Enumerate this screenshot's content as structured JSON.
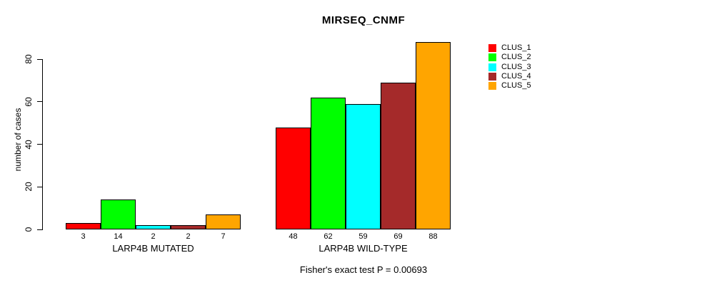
{
  "chart_data": {
    "type": "bar",
    "title": "MIRSEQ_CNMF",
    "ylabel": "number of cases",
    "xlabel": "",
    "caption": "Fisher's exact test P = 0.00693",
    "yticks": [
      0,
      20,
      40,
      60,
      80
    ],
    "ylim": [
      0,
      88
    ],
    "grid": false,
    "legend_position": "top-right",
    "series": [
      {
        "name": "CLUS_1",
        "color": "#FF0000",
        "values": [
          3,
          48
        ]
      },
      {
        "name": "CLUS_2",
        "color": "#00FF00",
        "values": [
          14,
          62
        ]
      },
      {
        "name": "CLUS_3",
        "color": "#00FFFF",
        "values": [
          2,
          59
        ]
      },
      {
        "name": "CLUS_4",
        "color": "#A52A2A",
        "values": [
          2,
          69
        ]
      },
      {
        "name": "CLUS_5",
        "color": "#FFA500",
        "values": [
          7,
          88
        ]
      }
    ],
    "groups": [
      {
        "label": "LARP4B MUTATED",
        "values": [
          3,
          14,
          2,
          2,
          7
        ]
      },
      {
        "label": "LARP4B WILD-TYPE",
        "values": [
          48,
          62,
          59,
          69,
          88
        ]
      }
    ],
    "bar_border_color": "#000000",
    "background_color": "#FFFFFF"
  }
}
